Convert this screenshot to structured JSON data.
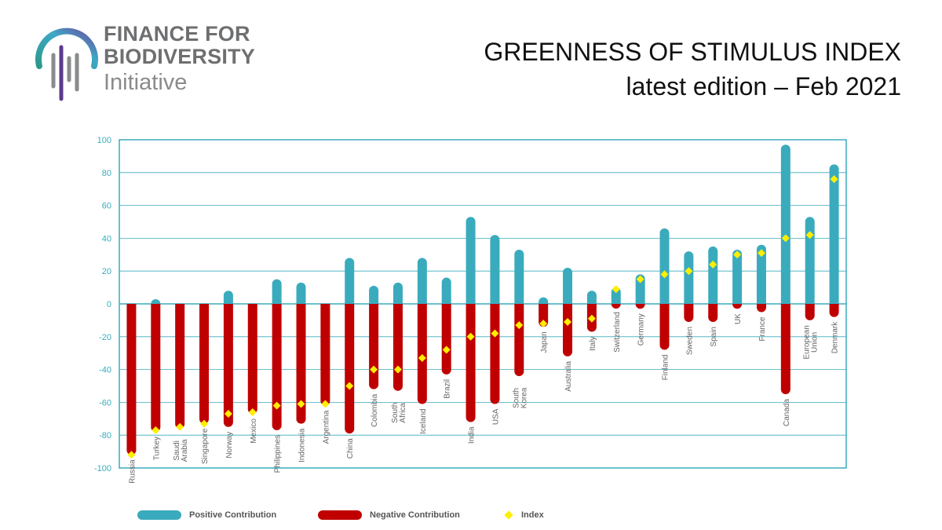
{
  "logo": {
    "line1": "FINANCE FOR",
    "line2": "BIODIVERSITY",
    "line3": "Initiative",
    "icon": "biodiversity-logo-icon"
  },
  "header": {
    "title": "GREENNESS OF STIMULUS INDEX",
    "subtitle": "latest edition – Feb 2021"
  },
  "colors": {
    "positive": "#3aabbd",
    "negative": "#c00000",
    "index": "#ffee00",
    "axis": "#3aabbd",
    "grid": "#3aabbd",
    "tick_label": "#3aabbd",
    "category_label": "#666666"
  },
  "chart_data": {
    "type": "bar",
    "title": "",
    "xlabel": "",
    "ylabel": "",
    "ylim": [
      -100,
      100
    ],
    "yticks": [
      100,
      80,
      60,
      40,
      20,
      0,
      -20,
      -40,
      -60,
      -80,
      -100
    ],
    "categories": [
      [
        "Russia"
      ],
      [
        "Turkey"
      ],
      [
        "Saudi",
        "Arabia"
      ],
      [
        "Singapore"
      ],
      [
        "Norway"
      ],
      [
        "Mexico"
      ],
      [
        "Philippines"
      ],
      [
        "Indonesia"
      ],
      [
        "Argentina"
      ],
      [
        "China"
      ],
      [
        "Colombia"
      ],
      [
        "South",
        "Africa"
      ],
      [
        "Iceland"
      ],
      [
        "Brazil"
      ],
      [
        "India"
      ],
      [
        "USA"
      ],
      [
        "South",
        "Korea"
      ],
      [
        "Japan"
      ],
      [
        "Australia"
      ],
      [
        "Italy"
      ],
      [
        "Switzerland"
      ],
      [
        "Germany"
      ],
      [
        "Finland"
      ],
      [
        "Sweden"
      ],
      [
        "Spain"
      ],
      [
        "UK"
      ],
      [
        "France"
      ],
      [
        "Canada"
      ],
      [
        "European",
        "Union"
      ],
      [
        "Denmark"
      ]
    ],
    "series": [
      {
        "name": "Positive Contribution",
        "values": [
          0,
          2,
          0,
          0,
          8,
          0,
          15,
          13,
          0,
          28,
          11,
          13,
          28,
          16,
          53,
          42,
          33,
          4,
          22,
          8,
          10,
          18,
          46,
          32,
          35,
          33,
          36,
          97,
          53,
          85
        ]
      },
      {
        "name": "Negative Contribution",
        "values": [
          -92,
          -78,
          -76,
          -73,
          -75,
          -67,
          -77,
          -73,
          -62,
          -79,
          -52,
          -53,
          -61,
          -43,
          -72,
          -61,
          -44,
          -14,
          -32,
          -17,
          -2,
          -3,
          -28,
          -11,
          -11,
          -3,
          -5,
          -55,
          -10,
          -8
        ]
      },
      {
        "name": "Index",
        "values": [
          -92,
          -77,
          -75,
          -73,
          -67,
          -66,
          -62,
          -61,
          -61,
          -50,
          -40,
          -40,
          -33,
          -28,
          -20,
          -18,
          -13,
          -12,
          -11,
          -9,
          9,
          15,
          18,
          20,
          24,
          30,
          31,
          40,
          42,
          76
        ]
      }
    ],
    "legend": [
      "Positive Contribution",
      "Negative Contribution",
      "Index"
    ],
    "legend_position": "bottom"
  }
}
